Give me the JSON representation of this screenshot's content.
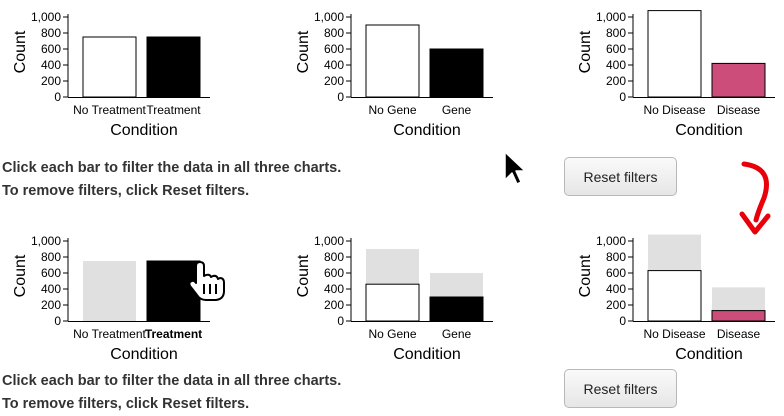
{
  "panels": [
    {
      "instructions": [
        "Click each bar to filter the data in all three charts.",
        "To remove filters, click Reset filters."
      ],
      "reset_label": "Reset filters"
    },
    {
      "instructions": [
        "Click each bar to filter the data in all three charts.",
        "To remove filters, click Reset filters."
      ],
      "reset_label": "Reset filters"
    }
  ],
  "colors": {
    "background_bar": "#e0e0e0",
    "treatment": "#000000",
    "gene": "#000000",
    "disease": "#cc4c7a",
    "arrow": "#e8000b"
  },
  "chart_data": [
    {
      "panel": "top",
      "type": "bar",
      "xlabel": "Condition",
      "ylabel": "Count",
      "ylim": [
        0,
        1000
      ],
      "yticks": [
        "0",
        "200",
        "400",
        "600",
        "800",
        "1,000"
      ],
      "categories": [
        "No Treatment",
        "Treatment"
      ],
      "series": [
        {
          "name": "count",
          "values": [
            750,
            750
          ],
          "fills": [
            "#ffffff",
            "#000000"
          ]
        }
      ]
    },
    {
      "panel": "top",
      "type": "bar",
      "xlabel": "Condition",
      "ylabel": "Count",
      "ylim": [
        0,
        1000
      ],
      "yticks": [
        "0",
        "200",
        "400",
        "600",
        "800",
        "1,000"
      ],
      "categories": [
        "No Gene",
        "Gene"
      ],
      "series": [
        {
          "name": "count",
          "values": [
            900,
            600
          ],
          "fills": [
            "#ffffff",
            "#000000"
          ]
        }
      ]
    },
    {
      "panel": "top",
      "type": "bar",
      "xlabel": "Condition",
      "ylabel": "Count",
      "ylim": [
        0,
        1000
      ],
      "yticks": [
        "0",
        "200",
        "400",
        "600",
        "800",
        "1,000"
      ],
      "categories": [
        "No Disease",
        "Disease"
      ],
      "series": [
        {
          "name": "count",
          "values": [
            1080,
            420
          ],
          "fills": [
            "#ffffff",
            "#cc4c7a"
          ]
        }
      ]
    },
    {
      "panel": "bottom",
      "type": "bar",
      "xlabel": "Condition",
      "ylabel": "Count",
      "ylim": [
        0,
        1000
      ],
      "yticks": [
        "0",
        "200",
        "400",
        "600",
        "800",
        "1,000"
      ],
      "categories": [
        "No Treatment",
        "Treatment"
      ],
      "selected": "Treatment",
      "series": [
        {
          "name": "total",
          "values": [
            750,
            750
          ],
          "fills": [
            "#e0e0e0",
            "#e0e0e0"
          ]
        },
        {
          "name": "filtered",
          "values": [
            0,
            750
          ],
          "fills": [
            "#ffffff",
            "#000000"
          ]
        }
      ]
    },
    {
      "panel": "bottom",
      "type": "bar",
      "xlabel": "Condition",
      "ylabel": "Count",
      "ylim": [
        0,
        1000
      ],
      "yticks": [
        "0",
        "200",
        "400",
        "600",
        "800",
        "1,000"
      ],
      "categories": [
        "No Gene",
        "Gene"
      ],
      "series": [
        {
          "name": "total",
          "values": [
            900,
            600
          ],
          "fills": [
            "#e0e0e0",
            "#e0e0e0"
          ]
        },
        {
          "name": "filtered",
          "values": [
            460,
            300
          ],
          "fills": [
            "#ffffff",
            "#000000"
          ]
        }
      ]
    },
    {
      "panel": "bottom",
      "type": "bar",
      "xlabel": "Condition",
      "ylabel": "Count",
      "ylim": [
        0,
        1000
      ],
      "yticks": [
        "0",
        "200",
        "400",
        "600",
        "800",
        "1,000"
      ],
      "categories": [
        "No Disease",
        "Disease"
      ],
      "series": [
        {
          "name": "total",
          "values": [
            1080,
            420
          ],
          "fills": [
            "#e0e0e0",
            "#e0e0e0"
          ]
        },
        {
          "name": "filtered",
          "values": [
            630,
            130
          ],
          "fills": [
            "#ffffff",
            "#cc4c7a"
          ]
        }
      ]
    }
  ]
}
